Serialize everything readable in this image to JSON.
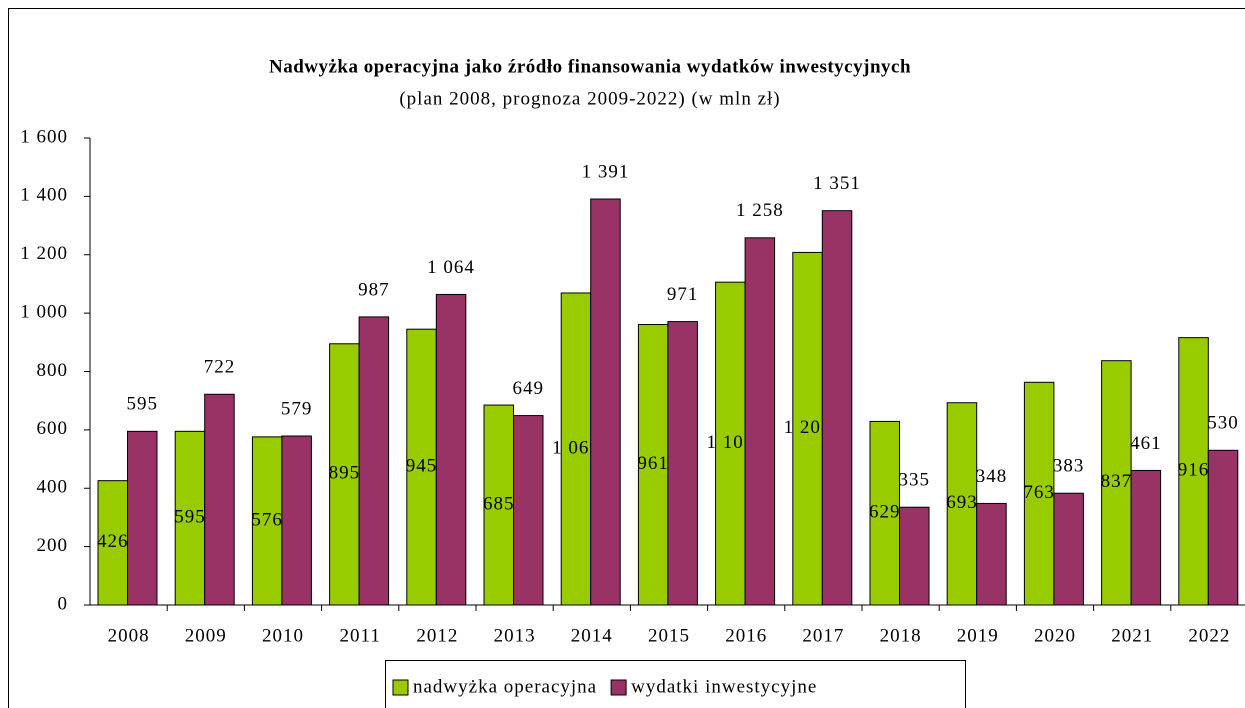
{
  "chart_data": {
    "type": "bar",
    "title": "Nadwyżka operacyjna jako źródło finansowania wydatków inwestycyjnych",
    "subtitle": "(plan 2008, prognoza 2009-2022) (w mln zł)",
    "categories": [
      "2008",
      "2009",
      "2010",
      "2011",
      "2012",
      "2013",
      "2014",
      "2015",
      "2016",
      "2017",
      "2018",
      "2019",
      "2020",
      "2021",
      "2022"
    ],
    "series": [
      {
        "name": "nadwyżka operacyjna",
        "color": "#99cc00",
        "values": [
          426,
          595,
          576,
          895,
          945,
          685,
          1069,
          961,
          1106,
          1208,
          629,
          693,
          763,
          837,
          916
        ],
        "value_labels": [
          "426",
          "595",
          "576",
          "895",
          "945",
          "685",
          "1 069",
          "961",
          "1 106",
          "1 208",
          "629",
          "693",
          "763",
          "837",
          "916"
        ]
      },
      {
        "name": "wydatki inwestycyjne",
        "color": "#993366",
        "values": [
          595,
          722,
          579,
          987,
          1064,
          649,
          1391,
          971,
          1258,
          1351,
          335,
          348,
          383,
          461,
          530
        ],
        "value_labels": [
          "595",
          "722",
          "579",
          "987",
          "1 064",
          "649",
          "1 391",
          "971",
          "1 258",
          "1 351",
          "335",
          "348",
          "383",
          "461",
          "530"
        ]
      }
    ],
    "ylim": [
      0,
      1600
    ],
    "yticks": [
      0,
      200,
      400,
      600,
      800,
      {
        "value": 1000,
        "label": "1 000"
      },
      {
        "value": 1200,
        "label": "1 200"
      },
      {
        "value": 1400,
        "label": "1 400"
      },
      {
        "value": 1600,
        "label": "1 600"
      }
    ],
    "grid": false,
    "legend": "bottom"
  }
}
